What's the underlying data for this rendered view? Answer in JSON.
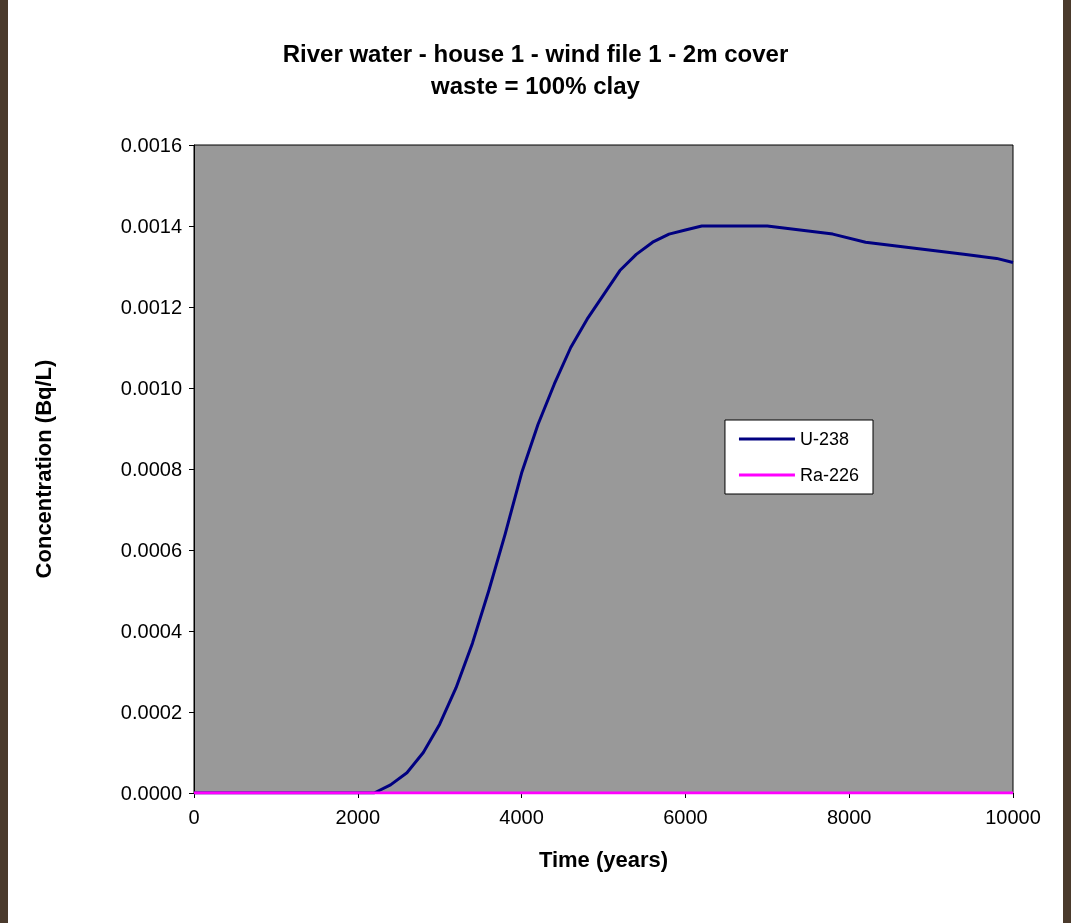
{
  "chart_data": {
    "type": "line",
    "title": "River water - house 1 - wind file 1 - 2m cover",
    "subtitle": "waste = 100% clay",
    "xlabel": "Time (years)",
    "ylabel": "Concentration (Bq/L)",
    "xlim": [
      0,
      10000
    ],
    "xticks": [
      0,
      2000,
      4000,
      6000,
      8000,
      10000
    ],
    "ylim": [
      0,
      0.0016
    ],
    "yticks": [
      {
        "value": 0,
        "label": "0.0000"
      },
      {
        "value": 0.0002,
        "label": "0.0002"
      },
      {
        "value": 0.0004,
        "label": "0.0004"
      },
      {
        "value": 0.0006,
        "label": "0.0006"
      },
      {
        "value": 0.0008,
        "label": "0.0008"
      },
      {
        "value": 0.001,
        "label": "0.0010"
      },
      {
        "value": 0.0012,
        "label": "0.0012"
      },
      {
        "value": 0.0014,
        "label": "0.0014"
      },
      {
        "value": 0.0016,
        "label": "0.0016"
      }
    ],
    "grid": false,
    "legend": "right",
    "marker": "none",
    "line_style": "solid",
    "series": [
      {
        "name": "U-238",
        "color": "#000080",
        "x": [
          0,
          2000,
          2200,
          2400,
          2600,
          2800,
          3000,
          3200,
          3400,
          3600,
          3800,
          4000,
          4200,
          4400,
          4600,
          4800,
          5000,
          5200,
          5400,
          5600,
          5800,
          6000,
          6200,
          6600,
          7000,
          7400,
          7800,
          8200,
          8600,
          9000,
          9400,
          9800,
          10000
        ],
        "values": [
          0,
          0,
          0,
          2e-05,
          5e-05,
          0.0001,
          0.00017,
          0.00026,
          0.00037,
          0.0005,
          0.00064,
          0.00079,
          0.00091,
          0.00101,
          0.0011,
          0.00117,
          0.00123,
          0.00129,
          0.00133,
          0.00136,
          0.00138,
          0.00139,
          0.0014,
          0.0014,
          0.0014,
          0.00139,
          0.00138,
          0.00136,
          0.00135,
          0.00134,
          0.00133,
          0.00132,
          0.00131
        ]
      },
      {
        "name": "Ra-226",
        "color": "#ff00ff",
        "x": [
          0,
          10000
        ],
        "values": [
          0,
          0
        ]
      }
    ]
  }
}
